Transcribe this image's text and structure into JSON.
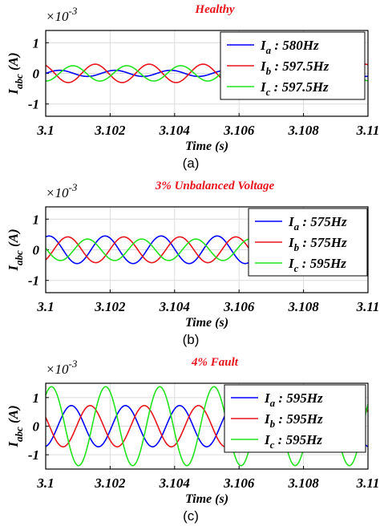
{
  "chart_data": [
    {
      "type": "line",
      "title": "Healthy",
      "title_color": "#e8141b",
      "caption": "(a)",
      "exponent_label": "×10",
      "exponent_power": "-3",
      "xlabel": "Time (s)",
      "ylabel_main": "I",
      "ylabel_sub": "abc",
      "ylabel_unit": "(A)",
      "xlim": [
        3.1,
        3.11
      ],
      "ylim": [
        -1.4,
        1.4
      ],
      "x_ticks": [
        "3.1",
        "3.102",
        "3.104",
        "3.106",
        "3.108",
        "3.11"
      ],
      "y_ticks": [
        "1",
        "0",
        "-1"
      ],
      "grid": true,
      "legend_position": "right",
      "series": [
        {
          "name_main": "I",
          "name_sub": "a",
          "name_rest": " : 580Hz",
          "color": "#0000ff",
          "amplitude": 0.1,
          "frequency": 580,
          "phase": 0
        },
        {
          "name_main": "I",
          "name_sub": "b",
          "name_rest": " : 597.5Hz",
          "color": "#e8141b",
          "amplitude": 0.3,
          "frequency": 597.5,
          "phase": 2.09
        },
        {
          "name_main": "I",
          "name_sub": "c",
          "name_rest": " : 597.5Hz",
          "color": "#22e31e",
          "amplitude": 0.25,
          "frequency": 597.5,
          "phase": -1.6
        }
      ]
    },
    {
      "type": "line",
      "title": "3% Unbalanced Voltage",
      "title_color": "#e8141b",
      "caption": "(b)",
      "exponent_label": "×10",
      "exponent_power": "-3",
      "xlabel": "Time (s)",
      "ylabel_main": "I",
      "ylabel_sub": "abc",
      "ylabel_unit": "(A)",
      "xlim": [
        3.1,
        3.11
      ],
      "ylim": [
        -1.4,
        1.4
      ],
      "x_ticks": [
        "3.1",
        "3.102",
        "3.104",
        "3.106",
        "3.108",
        "3.11"
      ],
      "y_ticks": [
        "1",
        "0",
        "-1"
      ],
      "grid": true,
      "legend_position": "right",
      "series": [
        {
          "name_main": "I",
          "name_sub": "a",
          "name_rest": " : 575Hz",
          "color": "#0000ff",
          "amplitude": 0.45,
          "frequency": 575,
          "phase": 1.2
        },
        {
          "name_main": "I",
          "name_sub": "b",
          "name_rest": " : 575Hz",
          "color": "#e8141b",
          "amplitude": 0.42,
          "frequency": 575,
          "phase": -0.9
        },
        {
          "name_main": "I",
          "name_sub": "c",
          "name_rest": " : 595Hz",
          "color": "#22e31e",
          "amplitude": 0.35,
          "frequency": 595,
          "phase": 3.0
        }
      ]
    },
    {
      "type": "line",
      "title": "4% Fault",
      "title_color": "#e8141b",
      "caption": "(c)",
      "exponent_label": "×10",
      "exponent_power": "-3",
      "xlabel": "Time (s)",
      "ylabel_main": "I",
      "ylabel_sub": "abc",
      "ylabel_unit": "(A)",
      "xlim": [
        3.1,
        3.11
      ],
      "ylim": [
        -1.5,
        1.5
      ],
      "x_ticks": [
        "3.1",
        "3.102",
        "3.104",
        "3.106",
        "3.108",
        "3.11"
      ],
      "y_ticks": [
        "1",
        "0",
        "-1"
      ],
      "grid": true,
      "legend_position": "right",
      "series": [
        {
          "name_main": "I",
          "name_sub": "a",
          "name_rest": " : 595Hz",
          "color": "#0000ff",
          "amplitude": 0.72,
          "frequency": 595,
          "phase": -1.4
        },
        {
          "name_main": "I",
          "name_sub": "b",
          "name_rest": " : 595Hz",
          "color": "#e8141b",
          "amplitude": 0.72,
          "frequency": 595,
          "phase": 2.7
        },
        {
          "name_main": "I",
          "name_sub": "c",
          "name_rest": " : 595Hz",
          "color": "#22e31e",
          "amplitude": 1.38,
          "frequency": 595,
          "phase": 0.9
        }
      ]
    }
  ]
}
